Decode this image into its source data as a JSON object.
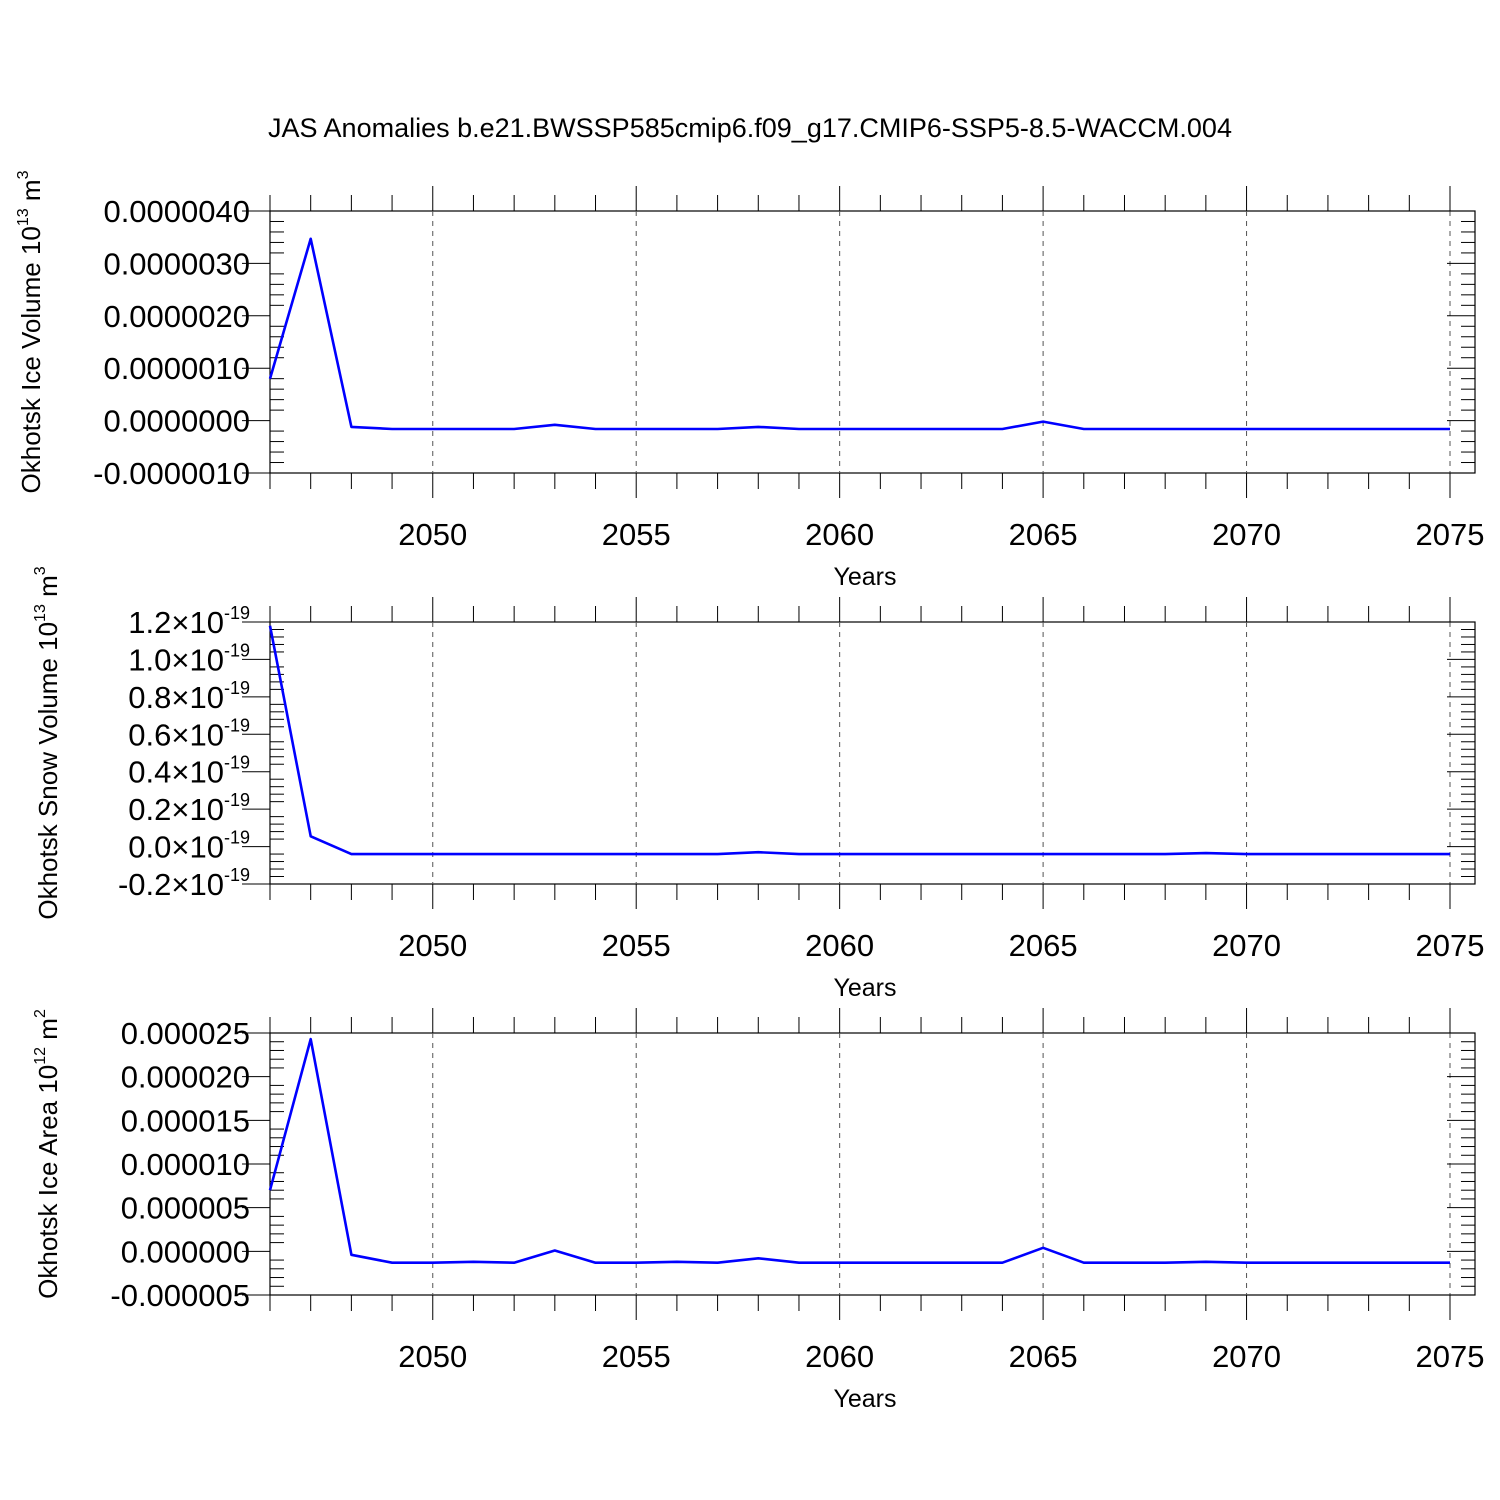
{
  "title": "JAS Anomalies b.e21.BWSSP585cmip6.f09_g17.CMIP6-SSP5-8.5-WACCM.004",
  "chart_data": [
    {
      "type": "line",
      "ylabel": "Okhotsk Ice Volume 10",
      "ylabel_exp": "13",
      "ylabel_unit": "m",
      "ylabel_unit_exp": "3",
      "xlabel": "Years",
      "xlim": [
        2046,
        2075
      ],
      "ylim": [
        -1e-06,
        4e-06
      ],
      "x_ticks": [
        2050,
        2055,
        2060,
        2065,
        2070,
        2075
      ],
      "x_tick_labels": [
        "2050",
        "2055",
        "2060",
        "2065",
        "2070",
        "2075"
      ],
      "y_ticks": [
        4e-06,
        3e-06,
        2e-06,
        1e-06,
        0,
        -1e-06
      ],
      "y_tick_labels": [
        "0.0000040",
        "0.0000030",
        "0.0000020",
        "0.0000010",
        "0.0000000",
        "-0.0000010"
      ],
      "grid": "vertical-dashed",
      "line_color": "#0000ff",
      "x": [
        2046,
        2047,
        2048,
        2049,
        2050,
        2051,
        2052,
        2053,
        2054,
        2055,
        2056,
        2057,
        2058,
        2059,
        2060,
        2061,
        2062,
        2063,
        2064,
        2065,
        2066,
        2067,
        2068,
        2069,
        2070,
        2071,
        2072,
        2073,
        2074,
        2075
      ],
      "values": [
        8e-07,
        3.47e-06,
        -1.2e-07,
        -1.6e-07,
        -1.6e-07,
        -1.6e-07,
        -1.6e-07,
        -8e-08,
        -1.6e-07,
        -1.6e-07,
        -1.6e-07,
        -1.6e-07,
        -1.2e-07,
        -1.6e-07,
        -1.6e-07,
        -1.6e-07,
        -1.6e-07,
        -1.6e-07,
        -1.6e-07,
        -2e-08,
        -1.6e-07,
        -1.6e-07,
        -1.6e-07,
        -1.6e-07,
        -1.6e-07,
        -1.6e-07,
        -1.6e-07,
        -1.6e-07,
        -1.6e-07,
        -1.6e-07
      ]
    },
    {
      "type": "line",
      "ylabel": "Okhotsk Snow Volume 10",
      "ylabel_exp": "13",
      "ylabel_unit": "m",
      "ylabel_unit_exp": "3",
      "xlabel": "Years",
      "xlim": [
        2046,
        2075
      ],
      "ylim": [
        -2e-20,
        1.2e-19
      ],
      "x_ticks": [
        2050,
        2055,
        2060,
        2065,
        2070,
        2075
      ],
      "x_tick_labels": [
        "2050",
        "2055",
        "2060",
        "2065",
        "2070",
        "2075"
      ],
      "y_ticks": [
        1.2e-19,
        1e-19,
        8e-20,
        6e-20,
        4e-20,
        2e-20,
        0,
        -2e-20
      ],
      "y_tick_labels": [
        "1.2",
        "1.0",
        "0.8",
        "0.6",
        "0.4",
        "0.2",
        "0.0",
        "-0.2"
      ],
      "y_tick_suffix": "10",
      "y_tick_suffix_exp": "-19",
      "grid": "vertical-dashed",
      "line_color": "#0000ff",
      "x": [
        2046,
        2047,
        2048,
        2049,
        2050,
        2051,
        2052,
        2053,
        2054,
        2055,
        2056,
        2057,
        2058,
        2059,
        2060,
        2061,
        2062,
        2063,
        2064,
        2065,
        2066,
        2067,
        2068,
        2069,
        2070,
        2071,
        2072,
        2073,
        2074,
        2075
      ],
      "values": [
        1.18e-19,
        5.5e-21,
        -4e-21,
        -4e-21,
        -4e-21,
        -4e-21,
        -4e-21,
        -4e-21,
        -4e-21,
        -4e-21,
        -4e-21,
        -4e-21,
        -3e-21,
        -4e-21,
        -4e-21,
        -4e-21,
        -4e-21,
        -4e-21,
        -4e-21,
        -4e-21,
        -4e-21,
        -4e-21,
        -4e-21,
        -3.5e-21,
        -4e-21,
        -4e-21,
        -4e-21,
        -4e-21,
        -4e-21,
        -4e-21
      ]
    },
    {
      "type": "line",
      "ylabel": "Okhotsk Ice Area 10",
      "ylabel_exp": "12",
      "ylabel_unit": "m",
      "ylabel_unit_exp": "2",
      "xlabel": "Years",
      "xlim": [
        2046,
        2075
      ],
      "ylim": [
        -5e-06,
        2.5e-05
      ],
      "x_ticks": [
        2050,
        2055,
        2060,
        2065,
        2070,
        2075
      ],
      "x_tick_labels": [
        "2050",
        "2055",
        "2060",
        "2065",
        "2070",
        "2075"
      ],
      "y_ticks": [
        2.5e-05,
        2e-05,
        1.5e-05,
        1e-05,
        5e-06,
        0,
        -5e-06
      ],
      "y_tick_labels": [
        "0.000025",
        "0.000020",
        "0.000015",
        "0.000010",
        "0.000005",
        "0.000000",
        "-0.000005"
      ],
      "grid": "vertical-dashed",
      "line_color": "#0000ff",
      "x": [
        2046,
        2047,
        2048,
        2049,
        2050,
        2051,
        2052,
        2053,
        2054,
        2055,
        2056,
        2057,
        2058,
        2059,
        2060,
        2061,
        2062,
        2063,
        2064,
        2065,
        2066,
        2067,
        2068,
        2069,
        2070,
        2071,
        2072,
        2073,
        2074,
        2075
      ],
      "values": [
        7e-06,
        2.43e-05,
        -4e-07,
        -1.3e-06,
        -1.3e-06,
        -1.2e-06,
        -1.3e-06,
        1e-07,
        -1.3e-06,
        -1.3e-06,
        -1.2e-06,
        -1.3e-06,
        -8e-07,
        -1.3e-06,
        -1.3e-06,
        -1.3e-06,
        -1.3e-06,
        -1.3e-06,
        -1.3e-06,
        4e-07,
        -1.3e-06,
        -1.3e-06,
        -1.3e-06,
        -1.2e-06,
        -1.3e-06,
        -1.3e-06,
        -1.3e-06,
        -1.3e-06,
        -1.3e-06,
        -1.3e-06
      ]
    }
  ]
}
